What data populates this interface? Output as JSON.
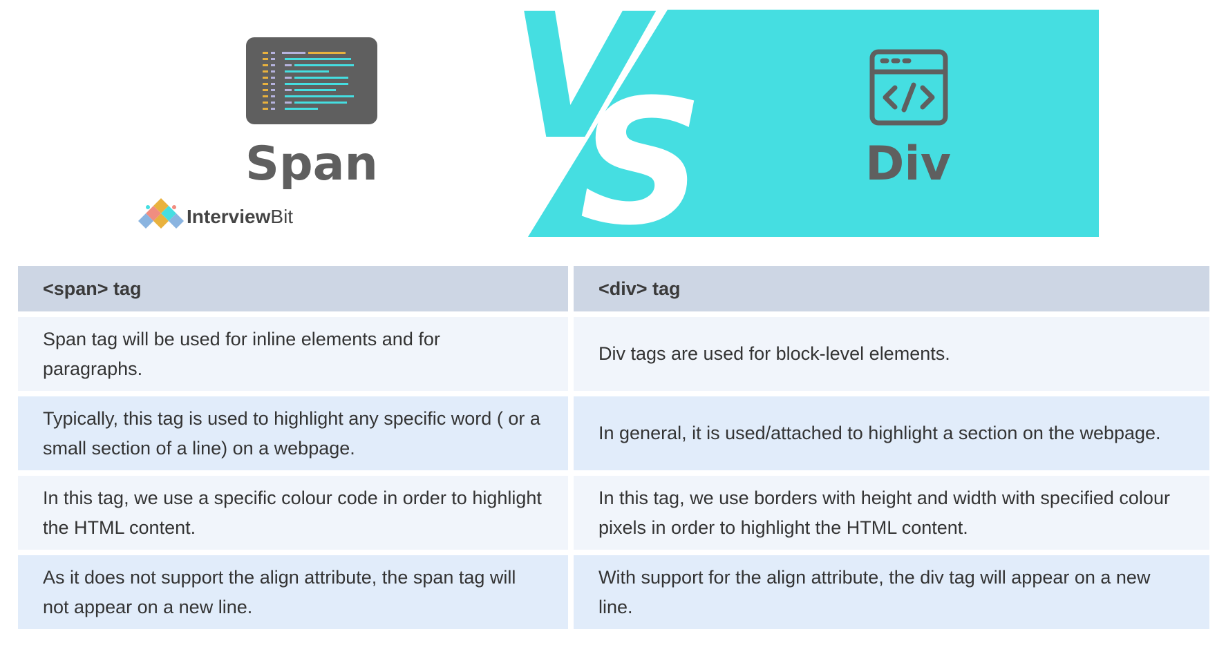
{
  "banner": {
    "left_title": "Span",
    "vs_v": "V",
    "vs_s": "S",
    "right_title": "Div",
    "brand_prefix": "Interview",
    "brand_suffix": "Bit",
    "left_icon": "code-editor-icon",
    "right_icon": "browser-code-icon",
    "accent_color": "#45dee1",
    "icon_color": "#5f5f5f"
  },
  "table": {
    "headers": [
      "<span> tag",
      "<div> tag"
    ],
    "rows": [
      {
        "span": "Span tag will be used for inline elements and for paragraphs.",
        "div": "Div tags are used for block-level elements."
      },
      {
        "span": "Typically, this tag is used to highlight any specific word ( or a small section of a line) on a webpage.",
        "div": "In general, it is used/attached to highlight a section on the webpage."
      },
      {
        "span": "In this tag, we use a specific colour code in order to highlight the HTML content.",
        "div": "In this tag, we use borders with height and width with specified colour pixels in order to highlight the HTML content."
      },
      {
        "span": "As it does not support the align attribute, the span tag will not appear on a new line.",
        "div": "With support for the align attribute, the div tag will appear on a new line."
      }
    ]
  }
}
